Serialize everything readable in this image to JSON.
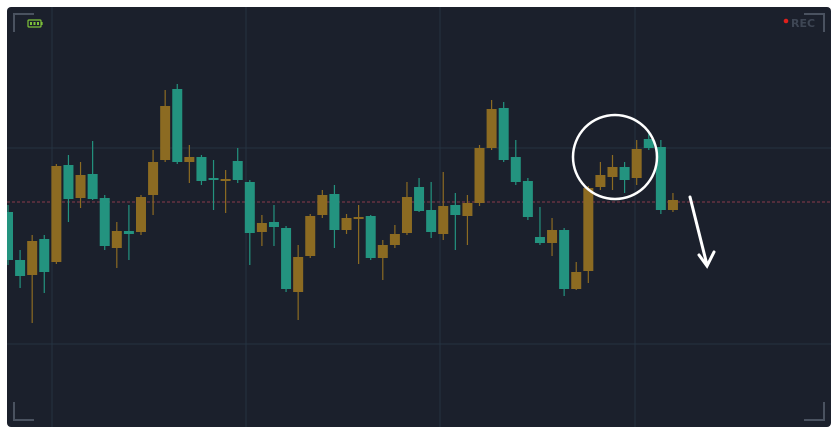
{
  "chart_data": {
    "type": "candlestick",
    "rec_label": "REC",
    "ylim": [
      0,
      420
    ],
    "yticks": [
      83,
      279
    ],
    "grid": true,
    "price_line": 225,
    "up_color": "#8c6b22",
    "down_color": "#23937f",
    "open": [
      215,
      167,
      152,
      188,
      165,
      262,
      229,
      253,
      229,
      179,
      196,
      195,
      232,
      267,
      338,
      265,
      270,
      249,
      246,
      266,
      245,
      195,
      205,
      199,
      135,
      171,
      212,
      233,
      197,
      208,
      211,
      169,
      182,
      194,
      240,
      217,
      193,
      222,
      211,
      224,
      279,
      319,
      270,
      246,
      190,
      184,
      197,
      138,
      156,
      240,
      250,
      260,
      249,
      288,
      280,
      217
    ],
    "high": [
      222,
      177,
      192,
      192,
      263,
      272,
      265,
      286,
      232,
      205,
      222,
      232,
      277,
      337,
      343,
      282,
      272,
      267,
      257,
      279,
      247,
      212,
      222,
      201,
      182,
      213,
      237,
      242,
      213,
      222,
      212,
      187,
      202,
      245,
      249,
      245,
      255,
      234,
      232,
      282,
      327,
      325,
      287,
      249,
      220,
      209,
      199,
      165,
      241,
      265,
      272,
      265,
      287,
      295,
      287,
      234
    ],
    "low": [
      162,
      139,
      104,
      134,
      163,
      205,
      219,
      227,
      177,
      159,
      167,
      192,
      212,
      265,
      263,
      244,
      242,
      217,
      214,
      244,
      162,
      181,
      181,
      135,
      107,
      169,
      209,
      179,
      193,
      163,
      167,
      147,
      179,
      192,
      215,
      189,
      187,
      177,
      182,
      221,
      277,
      265,
      242,
      207,
      182,
      171,
      131,
      137,
      144,
      237,
      237,
      234,
      242,
      277,
      213,
      215
    ],
    "close": [
      167,
      151,
      186,
      155,
      261,
      228,
      252,
      228,
      181,
      196,
      193,
      230,
      265,
      321,
      265,
      270,
      246,
      247,
      248,
      247,
      194,
      204,
      200,
      138,
      170,
      211,
      232,
      197,
      209,
      210,
      169,
      182,
      193,
      230,
      216,
      195,
      221,
      212,
      224,
      279,
      318,
      267,
      245,
      210,
      184,
      197,
      138,
      155,
      239,
      252,
      260,
      247,
      278,
      279,
      217,
      227
    ]
  }
}
